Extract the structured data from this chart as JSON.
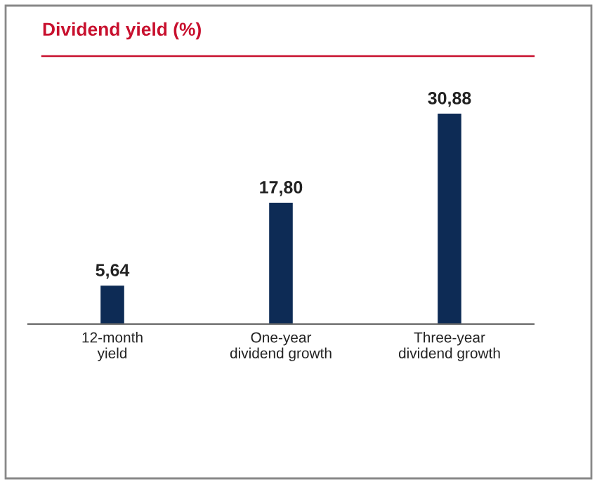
{
  "chart_data": {
    "type": "bar",
    "title": "Dividend yield (%)",
    "categories": [
      "12-month\nyield",
      "One-year\ndividend growth",
      "Three-year\ndividend growth"
    ],
    "values": [
      5.64,
      17.8,
      30.88
    ],
    "value_labels": [
      "5,64",
      "17,80",
      "30,88"
    ],
    "color": "#0d2b55",
    "grid": false,
    "legend": false
  }
}
